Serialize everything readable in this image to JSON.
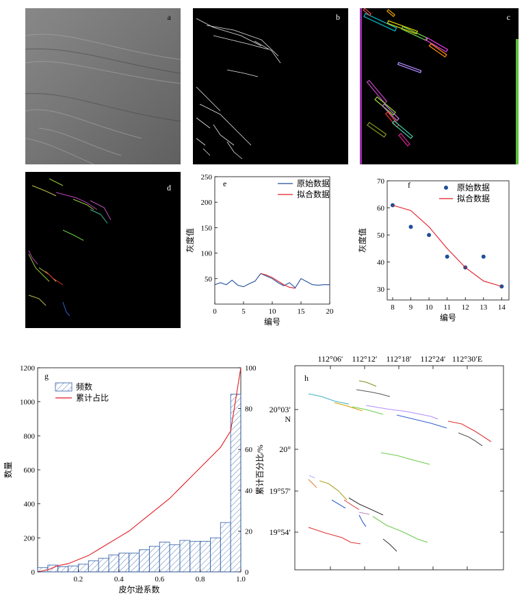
{
  "panels": {
    "a": {
      "label": "a"
    },
    "b": {
      "label": "b"
    },
    "c": {
      "label": "c"
    },
    "d": {
      "label": "d"
    }
  },
  "colors": {
    "raw_line": "#1f4e9a",
    "fit_line": "#e01b24",
    "raw_points": "#1f4e9a",
    "hist_stroke": "#2b5aa5",
    "cumulative": "#e01b24"
  },
  "chart_data": [
    {
      "id": "e",
      "type": "line",
      "label": "e",
      "xlabel": "编号",
      "ylabel": "灰度值",
      "xlim": [
        0,
        20
      ],
      "ylim": [
        0,
        250
      ],
      "xticks": [
        0,
        5,
        10,
        15,
        20
      ],
      "yticks": [
        50,
        100,
        150,
        200,
        250
      ],
      "series": [
        {
          "name": "原始数据",
          "color": "#1f4e9a",
          "x": [
            0,
            1,
            2,
            3,
            4,
            5,
            6,
            7,
            8,
            9,
            10,
            11,
            12,
            13,
            14,
            15,
            16,
            17,
            18,
            19,
            20
          ],
          "y": [
            38,
            42,
            38,
            47,
            37,
            34,
            40,
            45,
            60,
            55,
            50,
            42,
            36,
            42,
            32,
            50,
            44,
            38,
            37,
            38,
            38
          ]
        },
        {
          "name": "拟合数据",
          "color": "#e01b24",
          "x": [
            8,
            9,
            10,
            11,
            12,
            13,
            14
          ],
          "y": [
            60,
            57,
            52,
            45,
            38,
            33,
            31
          ]
        }
      ]
    },
    {
      "id": "f",
      "type": "scatter",
      "label": "f",
      "xlabel": "编号",
      "ylabel": "灰度值",
      "xlim": [
        7.7,
        14.4
      ],
      "ylim": [
        26,
        70
      ],
      "xticks": [
        8,
        9,
        10,
        11,
        12,
        13,
        14
      ],
      "yticks": [
        30,
        40,
        50,
        60,
        70
      ],
      "series": [
        {
          "name": "原始数据",
          "color": "#1f4e9a",
          "x": [
            8,
            9,
            10,
            11,
            12,
            13,
            14
          ],
          "y": [
            61,
            53,
            50,
            42,
            38,
            42,
            31
          ]
        },
        {
          "name": "拟合数据",
          "color": "#e01b24",
          "x": [
            8,
            9,
            10,
            11,
            12,
            13,
            14
          ],
          "y": [
            61,
            59,
            53,
            45,
            38,
            33,
            31
          ]
        }
      ]
    },
    {
      "id": "g",
      "type": "bar",
      "label": "g",
      "xlabel": "皮尔逊系数",
      "ylabel": "数量",
      "ylabel_right": "累计百分比/%",
      "xlim": [
        0,
        1
      ],
      "ylim": [
        0,
        1200
      ],
      "ylim_right": [
        0,
        100
      ],
      "xticks": [
        "0.2",
        "0.4",
        "0.6",
        "0.8",
        "1.0"
      ],
      "yticks": [
        0,
        200,
        400,
        600,
        800,
        1000,
        1200
      ],
      "yticks_right": [
        0,
        20,
        40,
        60,
        80,
        100
      ],
      "series": [
        {
          "name": "频数",
          "type": "histogram",
          "bin_width": 0.05,
          "bin_starts": [
            0,
            0.05,
            0.1,
            0.15,
            0.2,
            0.25,
            0.3,
            0.35,
            0.4,
            0.45,
            0.5,
            0.55,
            0.6,
            0.65,
            0.7,
            0.75,
            0.8,
            0.85,
            0.9,
            0.95
          ],
          "values": [
            25,
            40,
            30,
            35,
            45,
            65,
            80,
            100,
            110,
            110,
            130,
            150,
            175,
            160,
            185,
            180,
            180,
            200,
            290,
            1045
          ]
        },
        {
          "name": "累计占比",
          "type": "line",
          "x": [
            0,
            0.05,
            0.1,
            0.15,
            0.2,
            0.25,
            0.3,
            0.35,
            0.4,
            0.45,
            0.5,
            0.55,
            0.6,
            0.65,
            0.7,
            0.75,
            0.8,
            0.85,
            0.9,
            0.95,
            1.0
          ],
          "values": [
            0,
            1,
            3,
            4,
            6,
            8,
            11,
            14,
            17,
            20,
            24,
            28,
            32,
            36,
            41,
            46,
            51,
            56,
            61,
            69,
            100
          ]
        }
      ]
    }
  ],
  "map_h": {
    "label": "h",
    "lon_ticks": [
      "112°06′",
      "112°12′",
      "112°18′",
      "112°24′",
      "112°30′E"
    ],
    "lat_ticks": [
      "20°03′",
      "N",
      "20°",
      "19°57′",
      "19°54′"
    ]
  }
}
